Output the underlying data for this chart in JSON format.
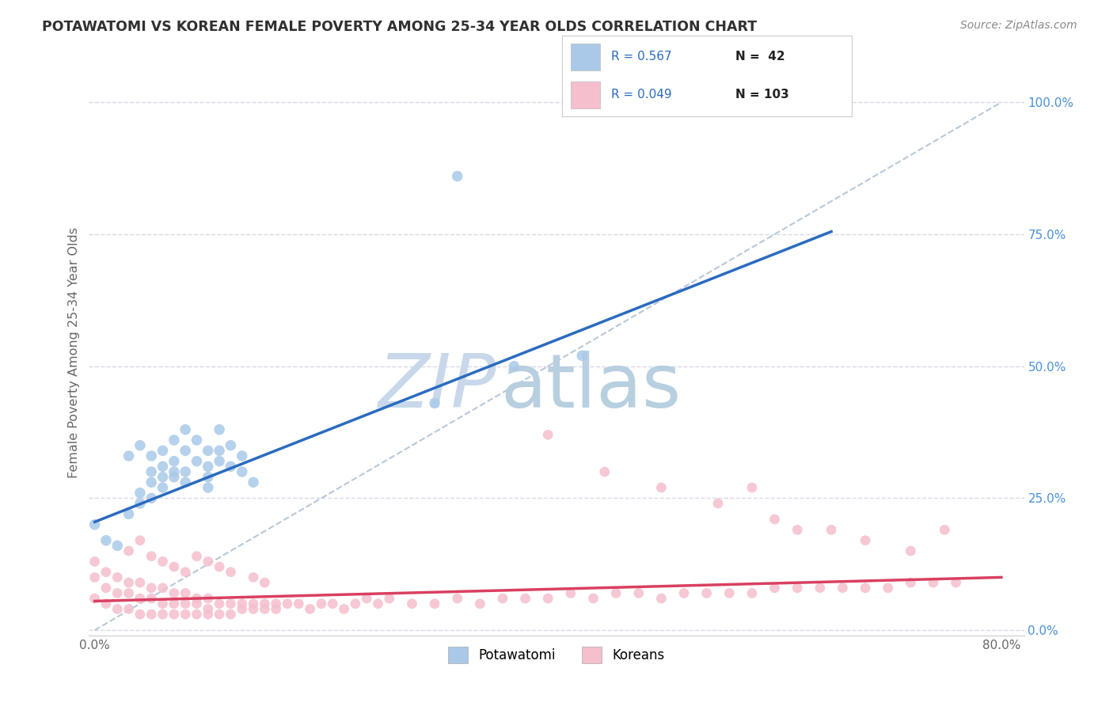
{
  "title": "POTAWATOMI VS KOREAN FEMALE POVERTY AMONG 25-34 YEAR OLDS CORRELATION CHART",
  "source": "Source: ZipAtlas.com",
  "ylabel": "Female Poverty Among 25-34 Year Olds",
  "xlabel": "",
  "xlim": [
    -0.005,
    0.82
  ],
  "ylim": [
    -0.01,
    1.06
  ],
  "xticks": [
    0.0,
    0.8
  ],
  "xticklabels": [
    "0.0%",
    "80.0%"
  ],
  "yticks_right": [
    0.0,
    0.25,
    0.5,
    0.75,
    1.0
  ],
  "ytick_right_labels": [
    "0.0%",
    "25.0%",
    "50.0%",
    "75.0%",
    "100.0%"
  ],
  "blue_R": 0.567,
  "blue_N": 42,
  "pink_R": 0.049,
  "pink_N": 103,
  "blue_color": "#aac9e8",
  "blue_edge_color": "#7aabd4",
  "blue_line_color": "#2a6bbf",
  "pink_color": "#f5bfcd",
  "pink_edge_color": "#e890a8",
  "pink_line_color": "#d94060",
  "legend_blue_label": "Potawatomi",
  "legend_pink_label": "Koreans",
  "watermark_zip": "ZIP",
  "watermark_atlas": "atlas",
  "watermark_color_zip": "#c8d8ea",
  "watermark_color_atlas": "#b8cfe0",
  "background_color": "#ffffff",
  "grid_color": "#d8d8e8",
  "title_color": "#303030",
  "ref_line_color": "#b8c8d8",
  "blue_scatter_x": [
    0.0,
    0.01,
    0.02,
    0.03,
    0.04,
    0.04,
    0.05,
    0.05,
    0.05,
    0.06,
    0.06,
    0.06,
    0.07,
    0.07,
    0.07,
    0.08,
    0.08,
    0.09,
    0.1,
    0.1,
    0.1,
    0.11,
    0.11,
    0.12,
    0.13,
    0.14,
    0.03,
    0.04,
    0.05,
    0.06,
    0.07,
    0.08,
    0.08,
    0.09,
    0.1,
    0.11,
    0.12,
    0.13,
    0.3,
    0.37,
    0.43,
    0.32
  ],
  "blue_scatter_y": [
    0.2,
    0.17,
    0.16,
    0.22,
    0.24,
    0.26,
    0.28,
    0.3,
    0.25,
    0.29,
    0.31,
    0.27,
    0.3,
    0.32,
    0.29,
    0.28,
    0.3,
    0.32,
    0.29,
    0.31,
    0.27,
    0.32,
    0.34,
    0.31,
    0.3,
    0.28,
    0.33,
    0.35,
    0.33,
    0.34,
    0.36,
    0.34,
    0.38,
    0.36,
    0.34,
    0.38,
    0.35,
    0.33,
    0.43,
    0.5,
    0.52,
    0.86
  ],
  "pink_scatter_x": [
    0.0,
    0.0,
    0.0,
    0.01,
    0.01,
    0.01,
    0.02,
    0.02,
    0.02,
    0.03,
    0.03,
    0.03,
    0.04,
    0.04,
    0.04,
    0.05,
    0.05,
    0.05,
    0.06,
    0.06,
    0.06,
    0.07,
    0.07,
    0.07,
    0.08,
    0.08,
    0.08,
    0.09,
    0.09,
    0.09,
    0.1,
    0.1,
    0.1,
    0.11,
    0.11,
    0.12,
    0.12,
    0.13,
    0.13,
    0.14,
    0.14,
    0.15,
    0.15,
    0.16,
    0.16,
    0.17,
    0.18,
    0.19,
    0.2,
    0.21,
    0.22,
    0.23,
    0.24,
    0.25,
    0.26,
    0.28,
    0.3,
    0.32,
    0.34,
    0.36,
    0.38,
    0.4,
    0.42,
    0.44,
    0.46,
    0.48,
    0.5,
    0.52,
    0.54,
    0.56,
    0.58,
    0.6,
    0.62,
    0.64,
    0.66,
    0.68,
    0.7,
    0.72,
    0.74,
    0.76,
    0.03,
    0.04,
    0.05,
    0.06,
    0.07,
    0.08,
    0.09,
    0.1,
    0.11,
    0.12,
    0.14,
    0.15,
    0.55,
    0.58,
    0.6,
    0.62,
    0.45,
    0.5,
    0.4,
    0.65,
    0.68,
    0.72,
    0.75
  ],
  "pink_scatter_y": [
    0.06,
    0.1,
    0.13,
    0.05,
    0.08,
    0.11,
    0.04,
    0.07,
    0.1,
    0.04,
    0.07,
    0.09,
    0.03,
    0.06,
    0.09,
    0.03,
    0.06,
    0.08,
    0.03,
    0.05,
    0.08,
    0.03,
    0.05,
    0.07,
    0.03,
    0.05,
    0.07,
    0.03,
    0.05,
    0.06,
    0.03,
    0.04,
    0.06,
    0.03,
    0.05,
    0.03,
    0.05,
    0.04,
    0.05,
    0.04,
    0.05,
    0.04,
    0.05,
    0.04,
    0.05,
    0.05,
    0.05,
    0.04,
    0.05,
    0.05,
    0.04,
    0.05,
    0.06,
    0.05,
    0.06,
    0.05,
    0.05,
    0.06,
    0.05,
    0.06,
    0.06,
    0.06,
    0.07,
    0.06,
    0.07,
    0.07,
    0.06,
    0.07,
    0.07,
    0.07,
    0.07,
    0.08,
    0.08,
    0.08,
    0.08,
    0.08,
    0.08,
    0.09,
    0.09,
    0.09,
    0.15,
    0.17,
    0.14,
    0.13,
    0.12,
    0.11,
    0.14,
    0.13,
    0.12,
    0.11,
    0.1,
    0.09,
    0.24,
    0.27,
    0.21,
    0.19,
    0.3,
    0.27,
    0.37,
    0.19,
    0.17,
    0.15,
    0.19
  ],
  "blue_line_x0": 0.0,
  "blue_line_y0": 0.205,
  "blue_line_x1": 0.65,
  "blue_line_y1": 0.755,
  "pink_line_x0": 0.0,
  "pink_line_y0": 0.055,
  "pink_line_x1": 0.8,
  "pink_line_y1": 0.1
}
